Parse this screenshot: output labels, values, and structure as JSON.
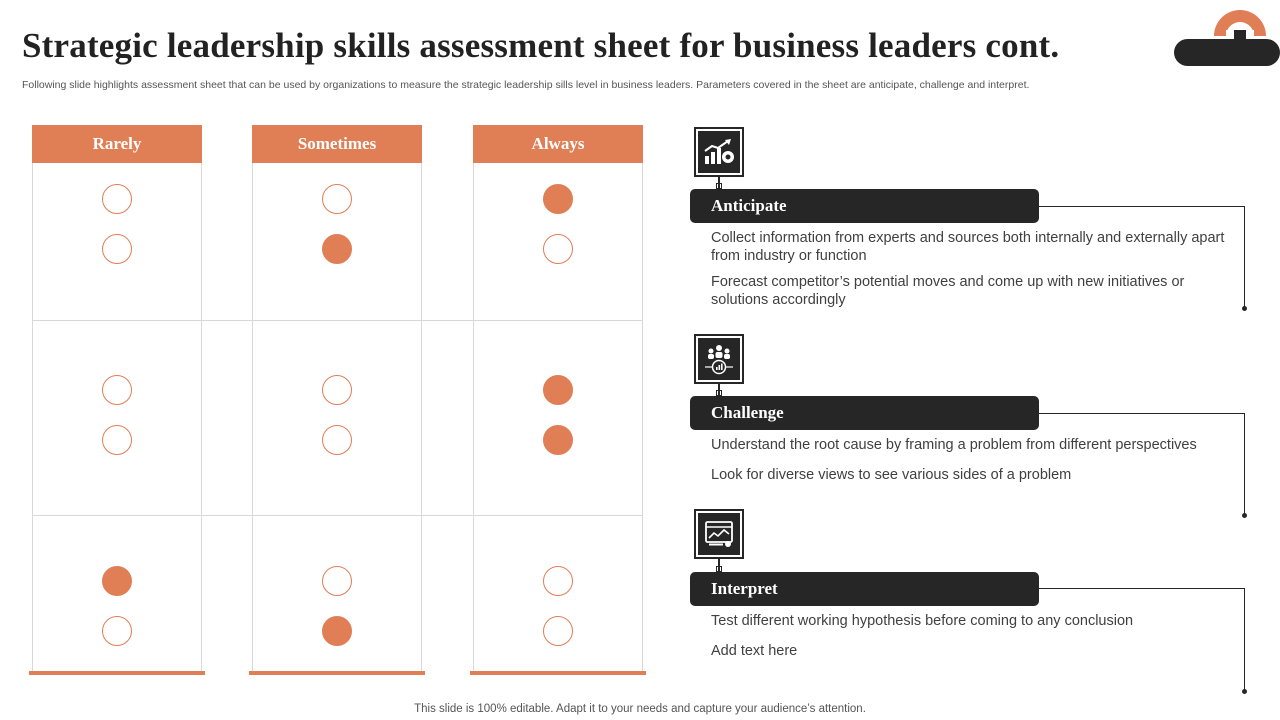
{
  "title": "Strategic leadership skills assessment sheet for business leaders cont.",
  "subtitle": "Following slide highlights assessment sheet that can be used by organizations to measure the strategic leadership sills level in business leaders. Parameters covered in the sheet are anticipate, challenge and interpret.",
  "columns": [
    "Rarely",
    "Sometimes",
    "Always"
  ],
  "ratings": [
    {
      "section": "Anticipate",
      "items": [
        {
          "selected": "Always"
        },
        {
          "selected": "Sometimes"
        }
      ]
    },
    {
      "section": "Challenge",
      "items": [
        {
          "selected": "Always"
        },
        {
          "selected": "Always"
        }
      ]
    },
    {
      "section": "Interpret",
      "items": [
        {
          "selected": "Rarely"
        },
        {
          "selected": "Sometimes"
        }
      ]
    }
  ],
  "sections": [
    {
      "label": "Anticipate",
      "icon": "growth-chart-icon",
      "points": [
        "Collect information from experts and sources both internally and externally apart from industry or function",
        "Forecast competitor’s potential moves and come up with new initiatives or solutions accordingly"
      ]
    },
    {
      "label": "Challenge",
      "icon": "team-analysis-icon",
      "points": [
        "Understand the root cause by framing a problem from different perspectives",
        "Look for diverse views to see various sides of a problem"
      ]
    },
    {
      "label": "Interpret",
      "icon": "report-screen-icon",
      "points": [
        "Test different working hypothesis before coming to any conclusion",
        "Add text here"
      ]
    }
  ],
  "footer": "This slide is 100% editable. Adapt it to your needs and capture your audience’s attention.",
  "colors": {
    "accent": "#E07E55",
    "dark": "#262626"
  }
}
